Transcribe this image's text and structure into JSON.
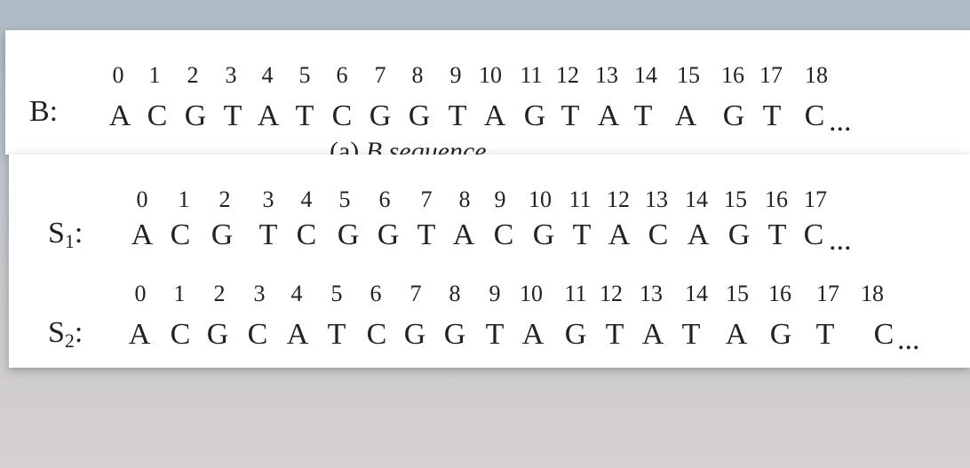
{
  "panel_b": {
    "label": "B:",
    "indices": [
      "0",
      "1",
      "2",
      "3",
      "4",
      "5",
      "6",
      "7",
      "8",
      "9",
      "10",
      "11",
      "12",
      "13",
      "14",
      "15",
      "16",
      "17",
      "18"
    ],
    "letters": [
      "A",
      "C",
      "G",
      "T",
      "A",
      "T",
      "C",
      "G",
      "G",
      "T",
      "A",
      "G",
      "T",
      "A",
      "T",
      "A",
      "G",
      "T",
      "C"
    ],
    "ellipsis": "...",
    "caption_prefix": "(a)",
    "caption_italic": "B",
    "caption_rest": " sequence"
  },
  "panel_s1": {
    "label_main": "S",
    "label_sub": "1",
    "label_colon": ":",
    "indices": [
      "0",
      "1",
      "2",
      "3",
      "4",
      "5",
      "6",
      "7",
      "8",
      "9",
      "10",
      "11",
      "12",
      "13",
      "14",
      "15",
      "16",
      "17"
    ],
    "letters": [
      "A",
      "C",
      "G",
      "T",
      "C",
      "G",
      "G",
      "T",
      "A",
      "C",
      "G",
      "T",
      "A",
      "C",
      "A",
      "G",
      "T",
      "C"
    ],
    "ellipsis": "..."
  },
  "panel_s2": {
    "label_main": "S",
    "label_sub": "2",
    "label_colon": ":",
    "indices": [
      "0",
      "1",
      "2",
      "3",
      "4",
      "5",
      "6",
      "7",
      "8",
      "9",
      "10",
      "11",
      "12",
      "13",
      "14",
      "15",
      "16",
      "17",
      "18"
    ],
    "letters": [
      "A",
      "C",
      "G",
      "C",
      "A",
      "T",
      "C",
      "G",
      "G",
      "T",
      "A",
      "G",
      "T",
      "A",
      "T",
      "A",
      "G",
      "T",
      "C"
    ],
    "ellipsis": "..."
  }
}
